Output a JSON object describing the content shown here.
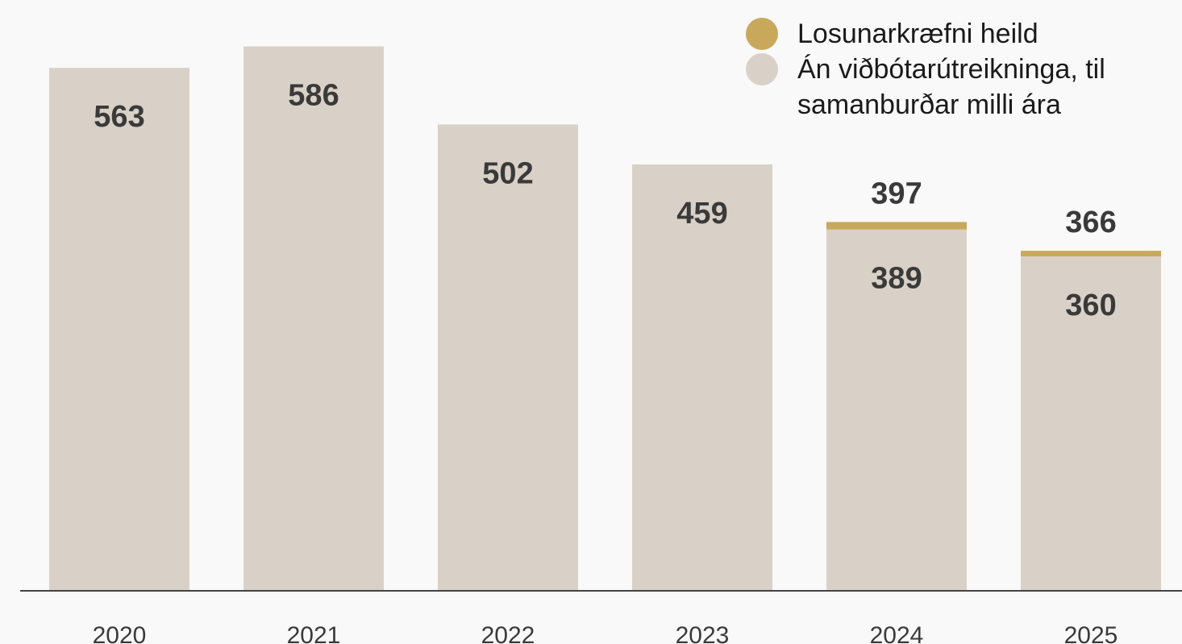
{
  "chart_data": {
    "type": "bar",
    "categories": [
      "2020",
      "2021",
      "2022",
      "2023",
      "2024",
      "2025"
    ],
    "series": [
      {
        "name": "Losunarkræfni heild",
        "color": "#c8a85a",
        "values": [
          null,
          null,
          null,
          null,
          397,
          366
        ]
      },
      {
        "name": "Án viðbótarútreikninga, til samanburðar milli ára",
        "color": "#d9d1c7",
        "values": [
          563,
          586,
          502,
          459,
          389,
          360
        ]
      }
    ],
    "ylim": [
      0,
      636
    ],
    "legend": "upper right"
  }
}
